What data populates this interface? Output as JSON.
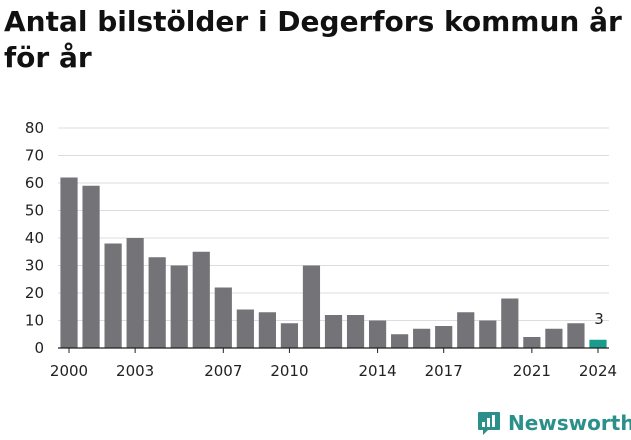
{
  "title": "Antal bilstölder i Degerfors kommun år för år",
  "brand": {
    "name": "Newsworthy",
    "icon": "newsworthy-logo-icon",
    "color": "#2b8f8a"
  },
  "colors": {
    "bar": "#747378",
    "highlight": "#1a9c8c",
    "grid": "#dddddd"
  },
  "chart_data": {
    "type": "bar",
    "categories": [
      "2000",
      "2001",
      "2002",
      "2003",
      "2004",
      "2005",
      "2006",
      "2007",
      "2008",
      "2009",
      "2010",
      "2011",
      "2012",
      "2013",
      "2014",
      "2015",
      "2016",
      "2017",
      "2018",
      "2019",
      "2020",
      "2021",
      "2022",
      "2023",
      "2024"
    ],
    "values": [
      62,
      59,
      38,
      40,
      33,
      30,
      35,
      22,
      14,
      13,
      9,
      30,
      12,
      12,
      10,
      5,
      7,
      8,
      13,
      10,
      18,
      4,
      7,
      9,
      3
    ],
    "x_tick_labels": [
      "2000",
      "2003",
      "2007",
      "2010",
      "2014",
      "2017",
      "2021",
      "2024"
    ],
    "y_ticks": [
      0,
      10,
      20,
      30,
      40,
      50,
      60,
      70,
      80
    ],
    "ylim": [
      0,
      80
    ],
    "grid": true,
    "highlight_index": 24,
    "annotations": [
      {
        "category": "2024",
        "text": "3"
      }
    ]
  }
}
